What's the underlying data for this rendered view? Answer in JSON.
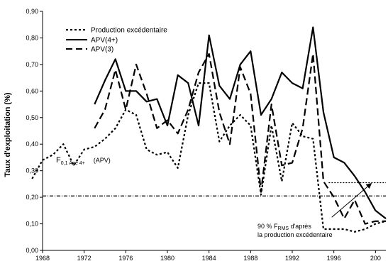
{
  "chart_data": {
    "type": "line",
    "title": "",
    "xlabel": "",
    "ylabel": "Taux d'exploitation (%)",
    "xlim": [
      1968,
      2001
    ],
    "ylim": [
      0,
      0.9
    ],
    "x_ticks": [
      "1968",
      "1972",
      "1976",
      "1980",
      "1984",
      "1988",
      "1992",
      "1996",
      "200"
    ],
    "y_ticks": [
      "0,00",
      "0,10",
      "0,20",
      "0,30",
      "0,40",
      "0,50",
      "0,60",
      "0,70",
      "0,80",
      "0,90"
    ],
    "legend": {
      "placement": "top-left",
      "entries": [
        "Production excédentaire",
        "APV(4+)",
        "APV(3)"
      ]
    },
    "series": [
      {
        "name": "Production excédentaire",
        "style": "dotted",
        "x": [
          1967,
          1968,
          1969,
          1970,
          1971,
          1972,
          1973,
          1974,
          1975,
          1976,
          1977,
          1978,
          1979,
          1980,
          1981,
          1982,
          1983,
          1984,
          1985,
          1986,
          1987,
          1988,
          1989,
          1990,
          1991,
          1992,
          1993,
          1994,
          1995,
          1996,
          1997,
          1998,
          1999,
          2000,
          2001
        ],
        "y": [
          0.27,
          0.34,
          0.36,
          0.4,
          0.32,
          0.38,
          0.39,
          0.42,
          0.46,
          0.53,
          0.51,
          0.38,
          0.36,
          0.37,
          0.31,
          0.51,
          0.63,
          0.63,
          0.41,
          0.47,
          0.51,
          0.47,
          0.21,
          0.47,
          0.26,
          0.48,
          0.43,
          0.42,
          0.08,
          0.08,
          0.08,
          0.07,
          0.08,
          0.1,
          0.11
        ]
      },
      {
        "name": "APV(4+)",
        "style": "solid",
        "x": [
          1973,
          1974,
          1975,
          1976,
          1977,
          1978,
          1979,
          1980,
          1981,
          1982,
          1983,
          1984,
          1985,
          1986,
          1987,
          1988,
          1989,
          1990,
          1991,
          1992,
          1993,
          1994,
          1995,
          1996,
          1997,
          1998,
          1999,
          2000,
          2001
        ],
        "y": [
          0.55,
          0.64,
          0.72,
          0.6,
          0.6,
          0.56,
          0.57,
          0.47,
          0.66,
          0.63,
          0.47,
          0.81,
          0.62,
          0.57,
          0.7,
          0.75,
          0.51,
          0.57,
          0.67,
          0.63,
          0.61,
          0.84,
          0.52,
          0.35,
          0.33,
          0.28,
          0.22,
          0.15,
          0.12
        ]
      },
      {
        "name": "APV(3)",
        "style": "dashed",
        "x": [
          1973,
          1974,
          1975,
          1976,
          1977,
          1978,
          1979,
          1980,
          1981,
          1982,
          1983,
          1984,
          1985,
          1986,
          1987,
          1988,
          1989,
          1990,
          1991,
          1992,
          1993,
          1994,
          1995,
          1996,
          1997,
          1998,
          1999,
          2000,
          2001
        ],
        "y": [
          0.46,
          0.53,
          0.68,
          0.53,
          0.7,
          0.59,
          0.46,
          0.49,
          0.44,
          0.53,
          0.67,
          0.74,
          0.52,
          0.4,
          0.69,
          0.59,
          0.22,
          0.55,
          0.32,
          0.33,
          0.46,
          0.74,
          0.26,
          0.2,
          0.12,
          0.19,
          0.1,
          0.11,
          0.11
        ]
      }
    ],
    "reference_lines": [
      {
        "y": 0.205,
        "style": "dash-dot",
        "label_main": "F",
        "label_sub": "0,1 Âge 4+",
        "label_extra": "(APV)"
      },
      {
        "y": 0.255,
        "x_from": 1995.5,
        "x_to": 2001,
        "style": "dotted"
      }
    ],
    "annotation": {
      "line1_pre": "90 % F",
      "line1_sub": "RMS",
      "line1_post": " d'après",
      "line2": "la production excédentaire",
      "arrow_from": [
        1995.8,
        0.125
      ],
      "arrow_to": [
        1999.6,
        0.252
      ]
    }
  }
}
